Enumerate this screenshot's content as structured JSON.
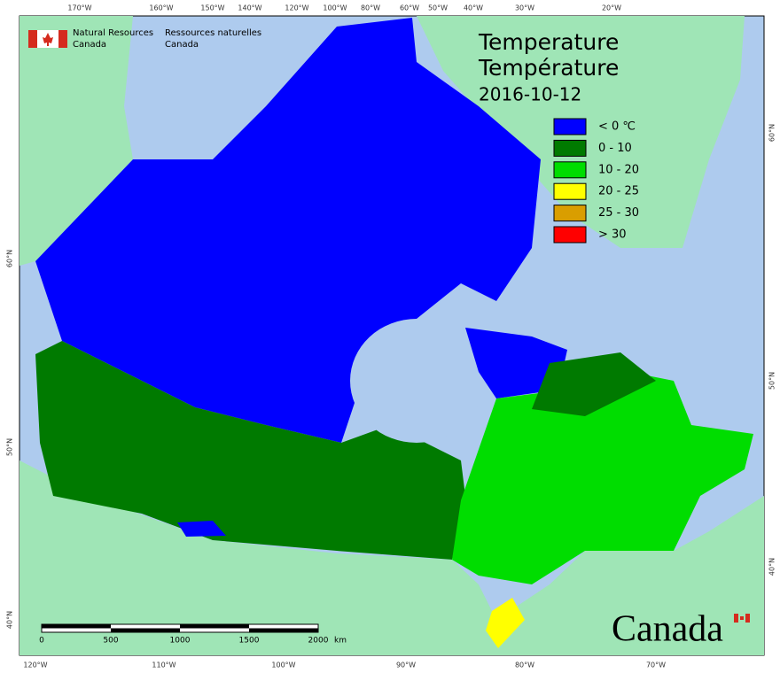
{
  "header": {
    "agency_en": [
      "Natural Resources",
      "Canada"
    ],
    "agency_fr": [
      "Ressources naturelles",
      "Canada"
    ]
  },
  "title": [
    "Temperature",
    "Température"
  ],
  "date": "2016-10-12",
  "legend": [
    {
      "label": "< 0 ℃",
      "color": "#0000ff"
    },
    {
      "label": "0 - 10",
      "color": "#007a00"
    },
    {
      "label": "10 - 20",
      "color": "#00dd00"
    },
    {
      "label": "20 - 25",
      "color": "#ffff00"
    },
    {
      "label": "25 - 30",
      "color": "#d99e00"
    },
    {
      "label": "> 30",
      "color": "#ff0000"
    }
  ],
  "graticule": {
    "top": [
      "170°W",
      "160°W",
      "150°W",
      "140°W",
      "120°W",
      "100°W",
      "80°W",
      "60°W",
      "50°W",
      "40°W",
      "30°W",
      "20°W"
    ],
    "bottom": [
      "120°W",
      "110°W",
      "100°W",
      "90°W",
      "80°W",
      "70°W"
    ],
    "left": [
      "60°N",
      "50°N",
      "40°N"
    ],
    "right": [
      "60°N",
      "50°N",
      "40°N"
    ]
  },
  "scale_bar": {
    "labels": [
      "0",
      "500",
      "1000",
      "1500",
      "2000"
    ],
    "unit": "km"
  },
  "wordmark": "Canada"
}
